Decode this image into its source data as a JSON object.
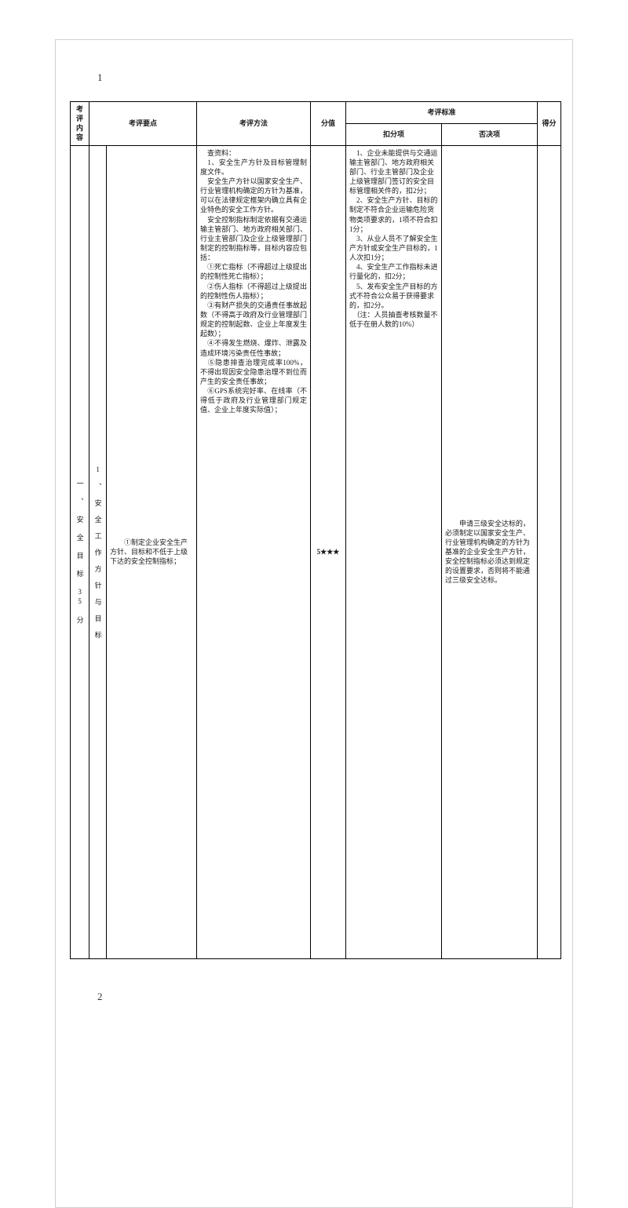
{
  "page_numbers": {
    "p1": "1",
    "p2": "2"
  },
  "headers": {
    "content": "考评\n内容",
    "points": "考评要点",
    "method": "考评方法",
    "score": "分值",
    "standards": "考评标准",
    "deduct": "扣分项",
    "veto": "否决项",
    "final": "得分"
  },
  "row": {
    "category": "一\n、\n安\n全\n目\n标\n35\n分",
    "sub": "1\n、\n安\n全\n工\n作\n方\n针\n与\n目\n标",
    "points_text": "　　①制定企业安全生产方针、目标和不低于上级下达的安全控制指标；",
    "method_lines": [
      "　查资料：",
      "　1、安全生产方针及目标管理制度文件。",
      "　安全生产方针以国家安全生产、行业管理机构确定的方针为基准，可以在法律规定框架内确立具有企业特色的安全工作方针。",
      "　安全控制指标制定依据有交通运输主管部门、地方政府相关部门、行业主管部门及企业上级管理部门制定的控制指标等，目标内容应包括：",
      "　①死亡指标（不得超过上级提出的控制性死亡指标）；",
      "　②伤人指标（不得超过上级提出的控制性伤人指标）；",
      "　③有财产损失的交通责任事故起数（不得高于政府及行业管理部门规定的控制起数、企业上年度发生起数）；",
      "　④不得发生燃烧、爆炸、泄露及造成环境污染责任性事故；",
      "　⑤隐患排查治理完成率100%，不得出现因安全隐患治理不到位而产生的安全责任事故；",
      "　⑥GPS系统完好率、在线率（不得低于政府及行业管理部门规定值、企业上年度实际值）；"
    ],
    "score": "5★★★",
    "deduct_lines": [
      "　1、企业未能提供与交通运输主管部门、地方政府相关部门、行业主管部门及企业上级管理部门签订的安全目标管理相关件的，扣2分；",
      "　2、安全生产方针、目标的制定不符合企业运输危险货物类项要求的，1项不符合扣1分；",
      "　3、从业人员不了解安全生产方针或安全生产目标的，1人次扣1分；",
      "　4、安全生产工作指标未进行量化的，扣2分；",
      "　5、发布安全生产目标的方式不符合公众易于获得要求的，扣2分。",
      "　（注：人员抽查考核数量不低于在册人数的10%）"
    ],
    "veto_text": "　　申请三级安全达标的，必须制定以国家安全生产、行业管理机构确定的方针为基准的企业安全生产方针，安全控制指标必须达到规定的设置要求，否则将不能通过三级安全达标。",
    "final_score": ""
  }
}
